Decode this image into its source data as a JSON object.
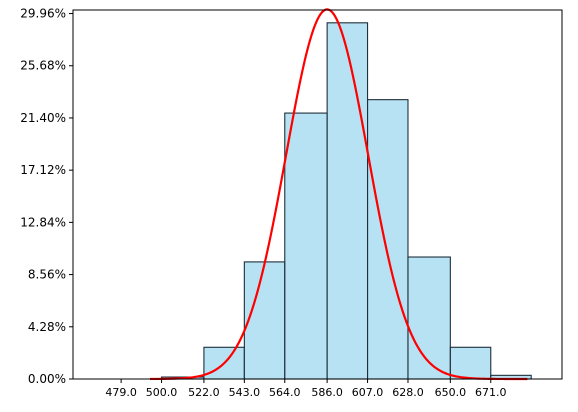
{
  "chart_data": {
    "type": "bar",
    "title": "",
    "xlabel": "",
    "ylabel": "",
    "bins": [
      {
        "start": 479.0,
        "end": 500.0,
        "value": 0.0
      },
      {
        "start": 500.0,
        "end": 522.0,
        "value": 0.16
      },
      {
        "start": 522.0,
        "end": 543.0,
        "value": 2.6
      },
      {
        "start": 543.0,
        "end": 564.0,
        "value": 9.6
      },
      {
        "start": 564.0,
        "end": 586.0,
        "value": 21.8
      },
      {
        "start": 586.0,
        "end": 607.0,
        "value": 29.2
      },
      {
        "start": 607.0,
        "end": 628.0,
        "value": 22.9
      },
      {
        "start": 628.0,
        "end": 650.0,
        "value": 10.0
      },
      {
        "start": 650.0,
        "end": 671.0,
        "value": 2.6
      },
      {
        "start": 671.0,
        "end": 692.0,
        "value": 0.3
      }
    ],
    "curve": {
      "type": "normal",
      "mean": 586.0,
      "sd": 21.3,
      "peak": 30.3
    },
    "xlim": [
      454.0,
      708.0
    ],
    "ylim": [
      0,
      30.25
    ],
    "x_ticks": [
      479.0,
      500.0,
      522.0,
      543.0,
      564.0,
      586.0,
      607.0,
      628.0,
      650.0,
      671.0
    ],
    "x_tick_labels": [
      "479.0",
      "500.0",
      "522.0",
      "543.0",
      "564.0",
      "586.0",
      "607.0",
      "628.0",
      "650.0",
      "671.0"
    ],
    "y_ticks": [
      0.0,
      4.28,
      8.56,
      12.84,
      17.12,
      21.4,
      25.68,
      29.96
    ],
    "y_tick_labels": [
      "0.00%",
      "4.28%",
      "8.56%",
      "12.84%",
      "17.12%",
      "21.40%",
      "25.68%",
      "29.96%"
    ],
    "grid": false,
    "legend": "none",
    "colors": {
      "bar_fill": "#87ceeb",
      "bar_edge": "#1f2f3a",
      "curve": "#ff0000",
      "axis": "#000000"
    }
  }
}
